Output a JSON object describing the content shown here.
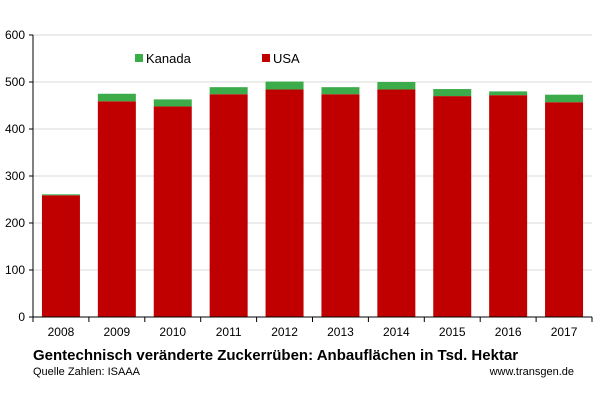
{
  "chart_data": {
    "type": "bar",
    "stacked": true,
    "title": "Gentechnisch veränderte Zuckerrüben: Anbauflächen in Tsd. Hektar",
    "xlabel": "",
    "ylabel": "",
    "categories": [
      "2008",
      "2009",
      "2010",
      "2011",
      "2012",
      "2013",
      "2014",
      "2015",
      "2016",
      "2017"
    ],
    "series": [
      {
        "name": "USA",
        "color": "#c00000",
        "values": [
          259,
          459,
          448,
          474,
          484,
          474,
          484,
          470,
          472,
          457
        ]
      },
      {
        "name": "Kanada",
        "color": "#3cab4a",
        "values": [
          2,
          16,
          15,
          15,
          17,
          15,
          16,
          15,
          8,
          16
        ]
      }
    ],
    "ylim": [
      0,
      600
    ],
    "yticks": [
      0,
      100,
      200,
      300,
      400,
      500,
      600
    ],
    "grid": true,
    "legend": {
      "placement": "top-left",
      "order": [
        "Kanada",
        "USA"
      ]
    }
  },
  "footer": {
    "source": "Quelle Zahlen: ISAAA",
    "website": "www.transgen.de"
  }
}
